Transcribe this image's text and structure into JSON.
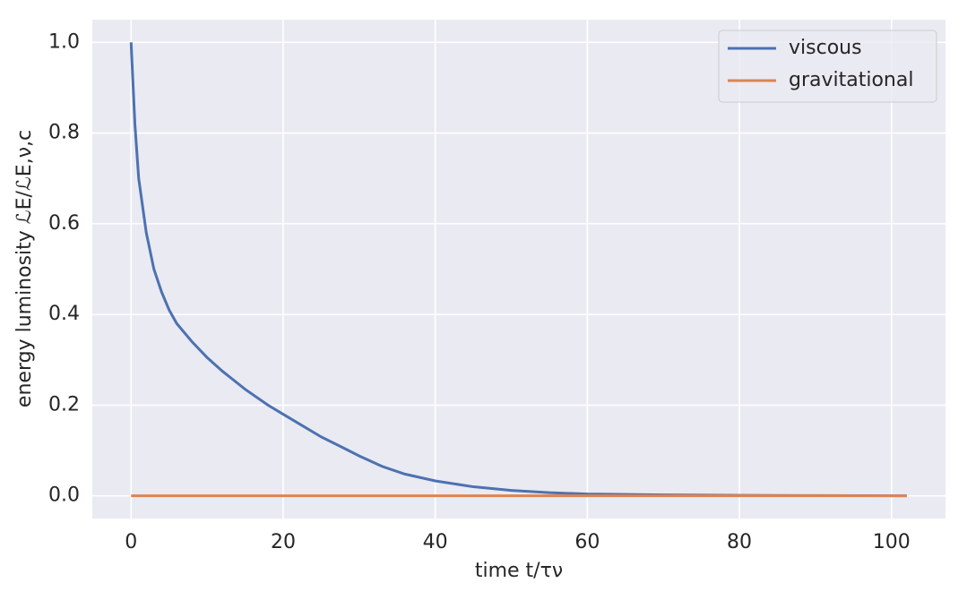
{
  "chart_data": {
    "type": "line",
    "xlabel": "time t/τν",
    "ylabel": "energy luminosity  ℒE/ℒE,ν,c",
    "xlim": [
      -5.1,
      107.1
    ],
    "ylim": [
      -0.05,
      1.05
    ],
    "xticks": [
      0,
      20,
      40,
      60,
      80,
      100
    ],
    "yticks": [
      {
        "value": 0,
        "label": "0.0"
      },
      {
        "value": 0.2,
        "label": "0.2"
      },
      {
        "value": 0.4,
        "label": "0.4"
      },
      {
        "value": 0.6,
        "label": "0.6"
      },
      {
        "value": 0.8,
        "label": "0.8"
      },
      {
        "value": 1.0,
        "label": "1.0"
      }
    ],
    "grid": true,
    "legend": "upper right",
    "series": [
      {
        "name": "viscous",
        "color": "#4c72b0",
        "x": [
          0,
          0.5,
          1,
          2,
          3,
          4,
          5,
          6,
          8,
          10,
          12,
          15,
          18,
          20,
          22,
          25,
          28,
          30,
          33,
          36,
          40,
          45,
          50,
          55,
          60,
          70,
          80,
          90,
          102
        ],
        "values": [
          1.0,
          0.82,
          0.7,
          0.58,
          0.5,
          0.45,
          0.41,
          0.38,
          0.34,
          0.305,
          0.275,
          0.235,
          0.2,
          0.18,
          0.16,
          0.13,
          0.105,
          0.088,
          0.065,
          0.048,
          0.033,
          0.02,
          0.012,
          0.007,
          0.004,
          0.002,
          0.001,
          0.0005,
          0
        ]
      },
      {
        "name": "gravitational",
        "color": "#dd8452",
        "x": [
          0,
          102
        ],
        "values": [
          0,
          0
        ]
      }
    ]
  }
}
